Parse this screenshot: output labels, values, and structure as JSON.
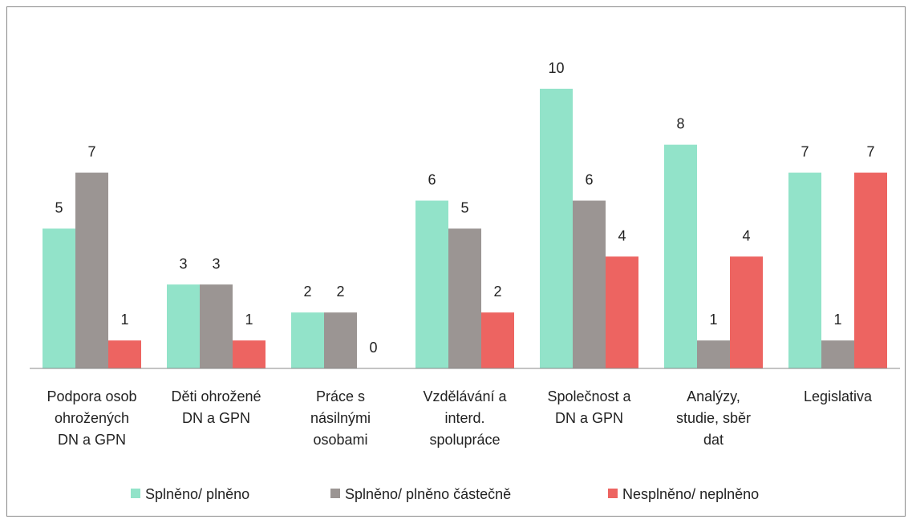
{
  "chart_data": {
    "type": "bar",
    "categories": [
      "Podpora osob\nohrožených\nDN a GPN",
      "Děti ohrožené\nDN a GPN",
      "Práce s\nnásilnými\nosobami",
      "Vzdělávání a\ninterd.\nspolupráce",
      "Společnost a\nDN a GPN",
      "Analýzy,\nstudie, sběr\ndat",
      "Legislativa"
    ],
    "series": [
      {
        "name": "Splněno/ plněno",
        "color": "#92e3c9",
        "values": [
          5,
          3,
          2,
          6,
          10,
          8,
          7
        ]
      },
      {
        "name": "Splněno/ plněno částečně",
        "color": "#9b9593",
        "values": [
          7,
          3,
          2,
          5,
          6,
          1,
          1
        ]
      },
      {
        "name": "Nesplněno/ neplněno",
        "color": "#ed6461",
        "values": [
          1,
          1,
          0,
          2,
          4,
          4,
          7
        ]
      }
    ],
    "ylim": [
      0,
      12
    ],
    "legend": "bottom"
  }
}
